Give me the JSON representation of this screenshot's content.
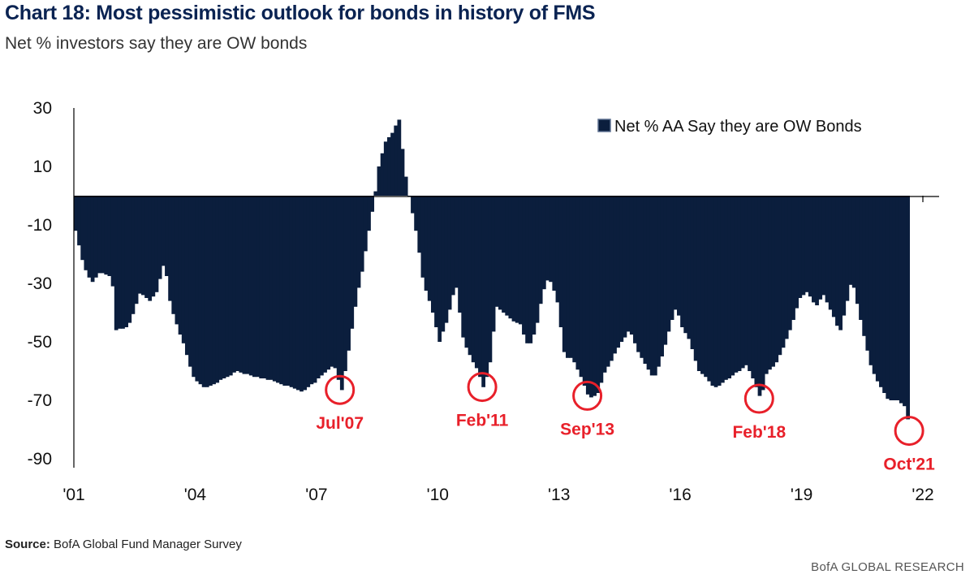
{
  "header": {
    "title": "Chart 18: Most pessimistic outlook for bonds in history of FMS",
    "subtitle": "Net % investors say they are OW bonds"
  },
  "footer": {
    "source_label": "Source:",
    "source_text": "BofA Global Fund Manager Survey",
    "brand": "BofA GLOBAL RESEARCH"
  },
  "colors": {
    "bars": "#0b1e3d",
    "annotation": "#e8202a"
  },
  "chart_data": {
    "type": "bar",
    "series": [
      {
        "name": "Net % AA Say they are OW Bonds",
        "anchors": [
          [
            2001.0,
            -12
          ],
          [
            2001.2,
            -24
          ],
          [
            2001.4,
            -30
          ],
          [
            2001.6,
            -26
          ],
          [
            2001.9,
            -28
          ],
          [
            2002.0,
            -46
          ],
          [
            2002.3,
            -45
          ],
          [
            2002.6,
            -33
          ],
          [
            2002.85,
            -36
          ],
          [
            2003.0,
            -33
          ],
          [
            2003.2,
            -22
          ],
          [
            2003.35,
            -38
          ],
          [
            2003.5,
            -44
          ],
          [
            2003.7,
            -52
          ],
          [
            2003.9,
            -62
          ],
          [
            2004.2,
            -66
          ],
          [
            2004.6,
            -63
          ],
          [
            2005.0,
            -60
          ],
          [
            2005.4,
            -62
          ],
          [
            2005.8,
            -63
          ],
          [
            2006.2,
            -65
          ],
          [
            2006.6,
            -67
          ],
          [
            2006.9,
            -64
          ],
          [
            2007.2,
            -60
          ],
          [
            2007.4,
            -58
          ],
          [
            2007.58,
            -67
          ],
          [
            2007.75,
            -53
          ],
          [
            2007.95,
            -35
          ],
          [
            2008.1,
            -25
          ],
          [
            2008.25,
            -12
          ],
          [
            2008.4,
            0
          ],
          [
            2008.5,
            10
          ],
          [
            2008.65,
            18
          ],
          [
            2008.85,
            22
          ],
          [
            2009.0,
            26
          ],
          [
            2009.15,
            8
          ],
          [
            2009.3,
            -4
          ],
          [
            2009.45,
            -14
          ],
          [
            2009.6,
            -30
          ],
          [
            2009.8,
            -38
          ],
          [
            2010.0,
            -50
          ],
          [
            2010.2,
            -42
          ],
          [
            2010.4,
            -30
          ],
          [
            2010.6,
            -50
          ],
          [
            2010.8,
            -56
          ],
          [
            2010.95,
            -60
          ],
          [
            2011.1,
            -66
          ],
          [
            2011.25,
            -57
          ],
          [
            2011.4,
            -38
          ],
          [
            2011.6,
            -40
          ],
          [
            2011.8,
            -43
          ],
          [
            2012.0,
            -44
          ],
          [
            2012.2,
            -52
          ],
          [
            2012.4,
            -45
          ],
          [
            2012.55,
            -33
          ],
          [
            2012.7,
            -28
          ],
          [
            2012.9,
            -35
          ],
          [
            2013.1,
            -55
          ],
          [
            2013.3,
            -56
          ],
          [
            2013.5,
            -62
          ],
          [
            2013.7,
            -69
          ],
          [
            2013.9,
            -68
          ],
          [
            2014.1,
            -60
          ],
          [
            2014.3,
            -55
          ],
          [
            2014.5,
            -50
          ],
          [
            2014.7,
            -46
          ],
          [
            2014.9,
            -53
          ],
          [
            2015.1,
            -58
          ],
          [
            2015.3,
            -63
          ],
          [
            2015.5,
            -55
          ],
          [
            2015.7,
            -45
          ],
          [
            2015.85,
            -38
          ],
          [
            2016.0,
            -45
          ],
          [
            2016.2,
            -50
          ],
          [
            2016.4,
            -60
          ],
          [
            2016.6,
            -62
          ],
          [
            2016.8,
            -66
          ],
          [
            2017.0,
            -64
          ],
          [
            2017.2,
            -62
          ],
          [
            2017.4,
            -60
          ],
          [
            2017.6,
            -58
          ],
          [
            2017.8,
            -64
          ],
          [
            2017.95,
            -70
          ],
          [
            2018.1,
            -60
          ],
          [
            2018.3,
            -58
          ],
          [
            2018.5,
            -52
          ],
          [
            2018.7,
            -45
          ],
          [
            2018.9,
            -35
          ],
          [
            2019.1,
            -33
          ],
          [
            2019.3,
            -38
          ],
          [
            2019.5,
            -34
          ],
          [
            2019.7,
            -40
          ],
          [
            2019.9,
            -47
          ],
          [
            2020.1,
            -35
          ],
          [
            2020.2,
            -28
          ],
          [
            2020.35,
            -38
          ],
          [
            2020.5,
            -48
          ],
          [
            2020.7,
            -60
          ],
          [
            2020.9,
            -65
          ],
          [
            2021.1,
            -70
          ],
          [
            2021.3,
            -70
          ],
          [
            2021.45,
            -71
          ],
          [
            2021.55,
            -73
          ],
          [
            2021.62,
            -80
          ],
          [
            2021.66,
            -81
          ]
        ]
      }
    ],
    "x_ticks": [
      "'01",
      "'04",
      "'07",
      "'10",
      "'13",
      "'16",
      "'19",
      "'22"
    ],
    "x_tick_values": [
      2001,
      2004,
      2007,
      2010,
      2013,
      2016,
      2019,
      2022
    ],
    "y_ticks": [
      30,
      10,
      -10,
      -30,
      -50,
      -70,
      -90
    ],
    "xlim": [
      2001,
      2022
    ],
    "ylim": [
      -90,
      30
    ],
    "legend": {
      "position": "top-right"
    },
    "annotations": [
      {
        "label": "Jul'07",
        "x": 2007.58,
        "y": -67
      },
      {
        "label": "Feb'11",
        "x": 2011.1,
        "y": -66
      },
      {
        "label": "Sep'13",
        "x": 2013.7,
        "y": -69
      },
      {
        "label": "Feb'18",
        "x": 2017.95,
        "y": -70
      },
      {
        "label": "Oct'21",
        "x": 2021.66,
        "y": -81
      }
    ]
  }
}
